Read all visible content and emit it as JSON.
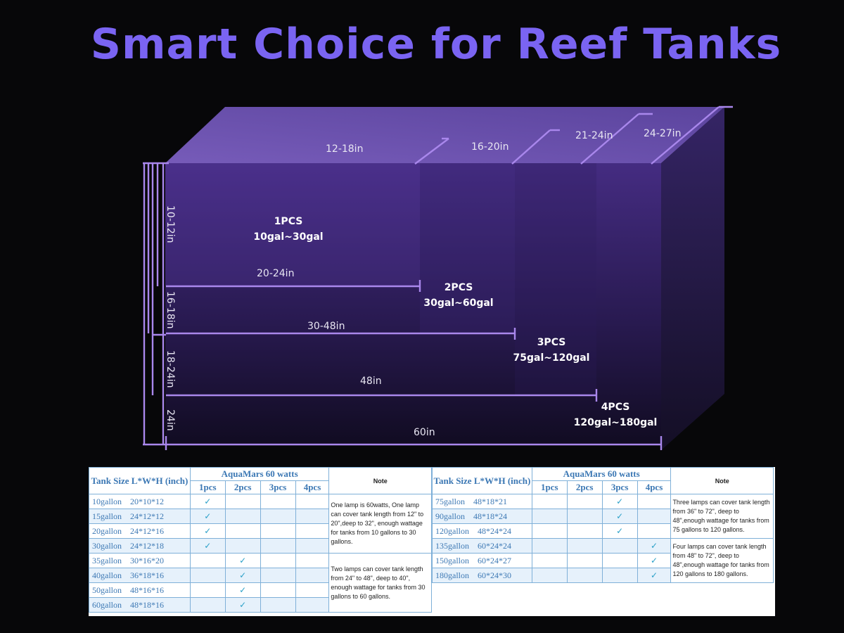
{
  "title": "Smart Choice for Reef Tanks",
  "diagram": {
    "top_labels": [
      "12-18in",
      "16-20in",
      "21-24in",
      "24-27in"
    ],
    "height_labels": [
      "10-12in",
      "16-18in",
      "18-24in",
      "24in"
    ],
    "length_labels": [
      "20-24in",
      "30-48in",
      "48in",
      "60in"
    ],
    "zones": [
      {
        "pcs": "1PCS",
        "gal": "10gal~30gal"
      },
      {
        "pcs": "2PCS",
        "gal": "30gal~60gal"
      },
      {
        "pcs": "3PCS",
        "gal": "75gal~120gal"
      },
      {
        "pcs": "4PCS",
        "gal": "120gal~180gal"
      }
    ]
  },
  "table_left": {
    "header_size": "Tank Size L*W*H (inch)",
    "header_group": "AquaMars 60 watts",
    "pcs": [
      "1pcs",
      "2pcs",
      "3pcs",
      "4pcs"
    ],
    "header_note": "Note",
    "rows": [
      {
        "gal": "10gallon",
        "size": "20*10*12",
        "c": [
          "✓",
          "",
          "",
          ""
        ]
      },
      {
        "gal": "15gallon",
        "size": "24*12*12",
        "c": [
          "✓",
          "",
          "",
          ""
        ]
      },
      {
        "gal": "20gallon",
        "size": "24*12*16",
        "c": [
          "✓",
          "",
          "",
          ""
        ]
      },
      {
        "gal": "30gallon",
        "size": "24*12*18",
        "c": [
          "✓",
          "",
          "",
          ""
        ]
      },
      {
        "gal": "35gallon",
        "size": "30*16*20",
        "c": [
          "",
          "✓",
          "",
          ""
        ]
      },
      {
        "gal": "40gallon",
        "size": "36*18*16",
        "c": [
          "",
          "✓",
          "",
          ""
        ]
      },
      {
        "gal": "50gallon",
        "size": "48*16*16",
        "c": [
          "",
          "✓",
          "",
          ""
        ]
      },
      {
        "gal": "60gallon",
        "size": "48*18*16",
        "c": [
          "",
          "✓",
          "",
          ""
        ]
      }
    ],
    "notes": [
      "One lamp is 60watts, One lamp can cover tank length from 12\" to 20\",deep to 32\", enough wattage for tanks from 10 gallons to 30 gallons.",
      "Two lamps can cover tank length from 24\" to 48\", deep to 40\", enough wattage for tanks from 30 gallons to 60 gallons."
    ]
  },
  "table_right": {
    "header_size": "Tank Size L*W*H (inch)",
    "header_group": "AquaMars 60 watts",
    "pcs": [
      "1pcs",
      "2pcs",
      "3pcs",
      "4pcs"
    ],
    "header_note": "Note",
    "rows": [
      {
        "gal": "75gallon",
        "size": "48*18*21",
        "c": [
          "",
          "",
          "✓",
          ""
        ]
      },
      {
        "gal": "90gallon",
        "size": "48*18*24",
        "c": [
          "",
          "",
          "✓",
          ""
        ]
      },
      {
        "gal": "120gallon",
        "size": "48*24*24",
        "c": [
          "",
          "",
          "✓",
          ""
        ]
      },
      {
        "gal": "135gallon",
        "size": "60*24*24",
        "c": [
          "",
          "",
          "",
          "✓"
        ]
      },
      {
        "gal": "150gallon",
        "size": "60*24*27",
        "c": [
          "",
          "",
          "",
          "✓"
        ]
      },
      {
        "gal": "180gallon",
        "size": "60*24*30",
        "c": [
          "",
          "",
          "",
          "✓"
        ]
      }
    ],
    "notes": [
      "Three lamps can cover tank length from 36\" to 72\", deep to 48\",enough wattage for tanks from 75 gallons to 120 gallons.",
      "Four lamps can cover tank length from 48\" to 72\", deep to 48\",enough wattage for tanks from 120 gallons to 180 gallons."
    ]
  },
  "colors": {
    "accent": "#7a64f2",
    "dimension_line": "#a987ec",
    "table_text": "#3c78b4",
    "checkmark": "#2aa0c8"
  }
}
